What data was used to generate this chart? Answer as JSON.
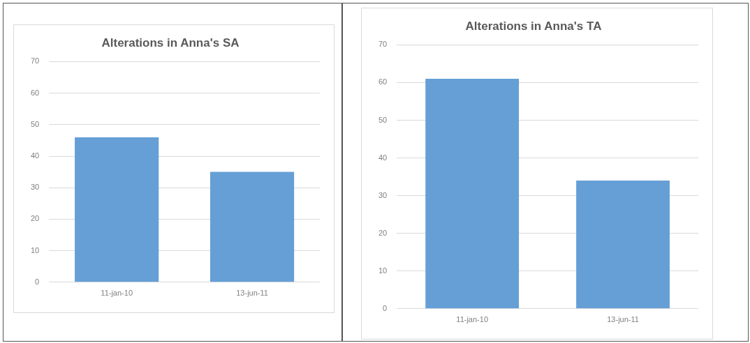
{
  "chart_data": [
    {
      "type": "bar",
      "title": "Alterations in Anna's SA",
      "categories": [
        "11-jan-10",
        "13-jun-11"
      ],
      "series": [
        {
          "color": "#659fd6",
          "values": [
            46,
            35
          ]
        }
      ],
      "ylim": [
        0,
        70
      ],
      "yticks": [
        0,
        10,
        20,
        30,
        40,
        50,
        60,
        70
      ],
      "grid": "y",
      "legend": false
    },
    {
      "type": "bar",
      "title": "Alterations in Anna's TA",
      "categories": [
        "11-jan-10",
        "13-jun-11"
      ],
      "series": [
        {
          "color": "#659fd6",
          "values": [
            61,
            34
          ]
        }
      ],
      "ylim": [
        0,
        70
      ],
      "yticks": [
        0,
        10,
        20,
        30,
        40,
        50,
        60,
        70
      ],
      "grid": "y",
      "legend": false
    }
  ]
}
